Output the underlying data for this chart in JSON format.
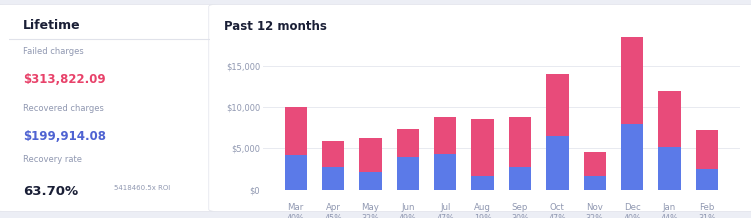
{
  "left_panel": {
    "title": "Lifetime",
    "failed_label": "Failed charges",
    "failed_value": "$313,822.09",
    "recovered_label": "Recovered charges",
    "recovered_value": "$199,914.08",
    "rate_label": "Recovery rate",
    "rate_value": "63.70%",
    "roi_value": "5418460.5x ROI",
    "bg_color": "#ffffff",
    "failed_color": "#e8426a",
    "recovered_color": "#4f63d2",
    "label_color": "#9098b1",
    "rate_color": "#1a1f36",
    "roi_color": "#9098b1"
  },
  "right_panel": {
    "title": "Past 12 months",
    "bg_color": "#ffffff",
    "months": [
      "Mar",
      "Apr",
      "May",
      "Jun",
      "Jul",
      "Aug",
      "Sep",
      "Oct",
      "Nov",
      "Dec",
      "Jan",
      "Feb"
    ],
    "percentages": [
      "40%",
      "45%",
      "32%",
      "49%",
      "47%",
      "19%",
      "30%",
      "47%",
      "32%",
      "40%",
      "44%",
      "31%"
    ],
    "blue_values": [
      4200,
      2700,
      2100,
      3900,
      4300,
      1700,
      2800,
      6500,
      1600,
      8000,
      5200,
      2500
    ],
    "pink_values": [
      5800,
      3200,
      4200,
      3500,
      4500,
      6900,
      6000,
      7500,
      3000,
      10500,
      6800,
      4700
    ],
    "blue_color": "#5b7ae8",
    "pink_color": "#e84b7a",
    "y_ticks": [
      0,
      5000,
      10000,
      15000
    ],
    "y_tick_labels": [
      "$0",
      "$5,000",
      "$10,000",
      "$15,000"
    ],
    "ylim": [
      0,
      19000
    ],
    "title_color": "#1a1f36",
    "tick_color": "#9098b1",
    "grid_color": "#e8eaf0"
  },
  "fig_bg": "#eceef5"
}
